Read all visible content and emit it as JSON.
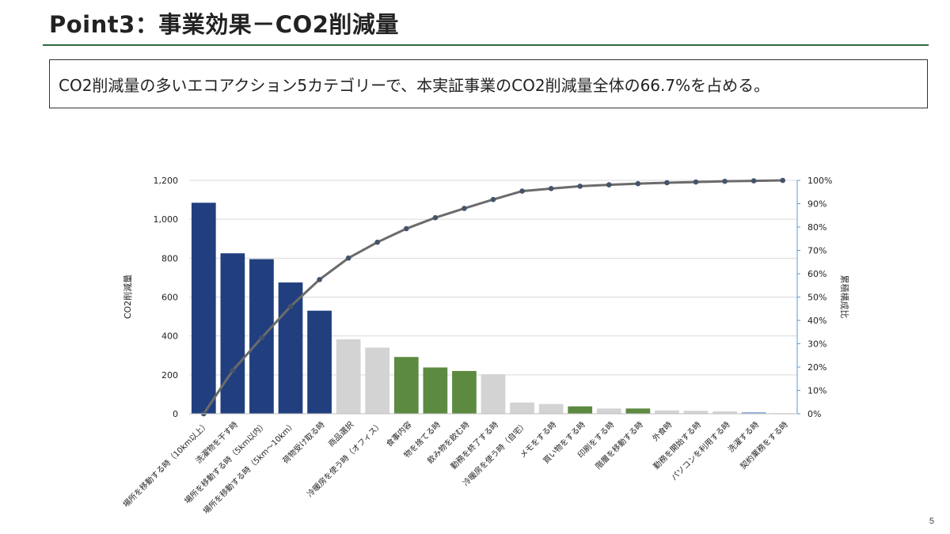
{
  "slide": {
    "title": "Point3：事業効果－CO2削減量",
    "summary": "CO2削減量の多いエコアクション5カテゴリーで、本実証事業のCO2削減量全体の66.7%を占める。",
    "page_number": "5"
  },
  "chart_data": {
    "type": "bar",
    "categories": [
      "場所を移動する時（10km以上）",
      "洗濯物を干す時",
      "場所を移動する時（5km以内）",
      "場所を移動する時（5km～10km）",
      "荷物受け取る時",
      "商品選択",
      "冷暖房を使う時（オフィス）",
      "食事内容",
      "物を捨てる時",
      "飲み物を飲む時",
      "勤務を終了する時",
      "冷暖房を使う時（自宅）",
      "メモをする時",
      "買い物をする時",
      "印刷をする時",
      "階層を移動する時",
      "外食時",
      "勤務を開始する時",
      "パソコンを利用する時",
      "洗濯する時",
      "契約業務をする時"
    ],
    "series": [
      {
        "name": "",
        "type": "bar",
        "axis": "left",
        "values": [
          1085,
          825,
          795,
          675,
          530,
          383,
          340,
          292,
          238,
          220,
          203,
          58,
          50,
          38,
          27,
          27,
          17,
          15,
          12,
          8,
          3
        ],
        "colors": [
          "#213f7f",
          "#213f7f",
          "#213f7f",
          "#213f7f",
          "#213f7f",
          "#d3d3d3",
          "#d3d3d3",
          "#5c8a41",
          "#5c8a41",
          "#5c8a41",
          "#d3d3d3",
          "#d3d3d3",
          "#d3d3d3",
          "#5c8a41",
          "#d3d3d3",
          "#5c8a41",
          "#d3d3d3",
          "#d3d3d3",
          "#d3d3d3",
          "#8faadc",
          "#d3d3d3"
        ]
      },
      {
        "name": "",
        "type": "line",
        "axis": "right",
        "values": [
          0,
          18.5,
          32.5,
          46,
          57.5,
          66.7,
          73.5,
          79.3,
          84,
          88,
          91.8,
          95.4,
          96.5,
          97.5,
          98.1,
          98.6,
          99,
          99.3,
          99.6,
          99.8,
          100
        ],
        "color": "#6b6b6b",
        "marker_color": "#44546a"
      }
    ],
    "ylabel": "CO2削減量",
    "y2label": "累積構成比",
    "ylim": [
      0,
      1200
    ],
    "yticks": [
      "0",
      "200",
      "400",
      "600",
      "800",
      "1,000",
      "1,200"
    ],
    "y2lim": [
      0,
      100
    ],
    "y2ticks": [
      "0%",
      "10%",
      "20%",
      "30%",
      "40%",
      "50%",
      "60%",
      "70%",
      "80%",
      "90%",
      "100%"
    ],
    "grid": true,
    "legend": "none"
  }
}
